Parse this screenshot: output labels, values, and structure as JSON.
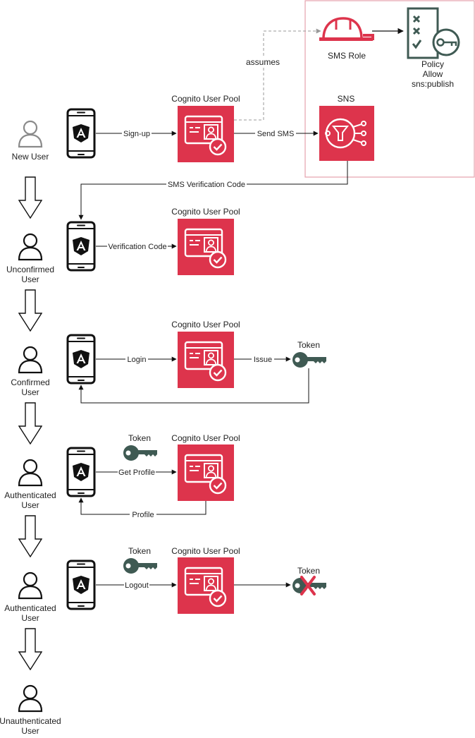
{
  "colors": {
    "cognito_red": "#dd344c",
    "key_green": "#3f5a53",
    "sns_box": "#e5a2ad",
    "ink": "#111111",
    "arrow": "#111111"
  },
  "users": [
    {
      "label": "New User",
      "style": "outline-gray"
    },
    {
      "label": "Unconfirmed User",
      "style": "outline"
    },
    {
      "label": "Confirmed User",
      "style": "outline"
    },
    {
      "label": "Authenticated User",
      "style": "outline"
    },
    {
      "label": "Authenticated User",
      "style": "outline"
    },
    {
      "label": "Unauthenticated User",
      "style": "outline"
    }
  ],
  "cognito_label": "Cognito User Pool",
  "token_label": "Token",
  "sms_role_label": "SMS Role",
  "policy_label": "Policy\nAllow\nsns:publish",
  "sns_label": "SNS",
  "edges": {
    "assumes": "assumes",
    "sign_up": "Sign-up",
    "send_sms": "Send SMS",
    "sms_code": "SMS Verification Code",
    "verification_code": "Verification Code",
    "login": "Login",
    "issue": "Issue",
    "get_profile": "Get Profile",
    "profile": "Profile",
    "logout": "Logout"
  },
  "icons": {
    "user": "user-icon",
    "phone": "angular-phone-icon",
    "cognito": "cognito-user-pool-icon",
    "key": "key-icon",
    "revoked_key": "revoked-key-icon",
    "role": "iam-role-hardhat-icon",
    "policy": "iam-policy-icon",
    "sns": "sns-topic-icon",
    "flow": "down-arrow-icon"
  }
}
